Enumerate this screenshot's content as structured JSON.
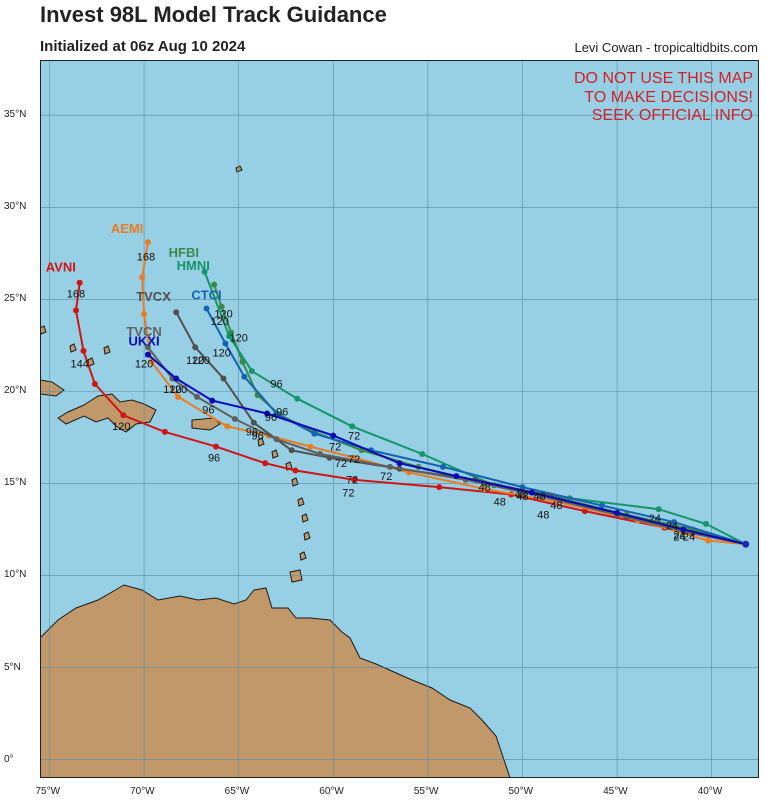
{
  "header": {
    "title": "Invest 98L Model Track Guidance",
    "subtitle": "Initialized at 06z Aug 10 2024",
    "credit": "Levi Cowan - tropicaltidbits.com"
  },
  "warning": [
    "DO NOT USE THIS MAP",
    "TO MAKE DECISIONS!",
    "SEEK OFFICIAL INFO"
  ],
  "colors": {
    "ocean": "#97cfe4",
    "land": "#c0986a",
    "grid": "#5a8ea6",
    "warning": "#d61f26"
  },
  "chart_data": {
    "type": "map",
    "projection": "equirectangular",
    "lon_range": [
      -75.5,
      -37.5
    ],
    "lat_range": [
      -1,
      38
    ],
    "lat_ticks": [
      {
        "value": 35,
        "label": "35°N"
      },
      {
        "value": 30,
        "label": "30°N"
      },
      {
        "value": 25,
        "label": "25°N"
      },
      {
        "value": 20,
        "label": "20°N"
      },
      {
        "value": 15,
        "label": "15°N"
      },
      {
        "value": 10,
        "label": "10°N"
      },
      {
        "value": 5,
        "label": "5°N"
      },
      {
        "value": 0,
        "label": "0°"
      }
    ],
    "lon_ticks": [
      {
        "value": -75,
        "label": "75°W"
      },
      {
        "value": -70,
        "label": "70°W"
      },
      {
        "value": -65,
        "label": "65°W"
      },
      {
        "value": -60,
        "label": "60°W"
      },
      {
        "value": -55,
        "label": "55°W"
      },
      {
        "value": -50,
        "label": "50°W"
      },
      {
        "value": -45,
        "label": "45°W"
      },
      {
        "value": -40,
        "label": "40°W"
      }
    ],
    "grid": true,
    "models": [
      {
        "name": "AVNI",
        "color": "#d01515",
        "track": [
          [
            -38.2,
            11.7
          ],
          [
            -42.5,
            12.6
          ],
          [
            -46.7,
            13.5
          ],
          [
            -50.6,
            14.4
          ],
          [
            -54.4,
            14.8
          ],
          [
            -58.9,
            15.2
          ],
          [
            -62.0,
            15.7
          ],
          [
            -63.6,
            16.1
          ],
          [
            -66.2,
            17.0
          ],
          [
            -68.9,
            17.8
          ],
          [
            -71.1,
            18.7
          ],
          [
            -72.6,
            20.4
          ],
          [
            -73.2,
            22.2
          ],
          [
            -73.6,
            24.4
          ],
          [
            -73.4,
            25.9
          ]
        ],
        "labels": [
          {
            "text": "24",
            "lon": -41.7,
            "lat": 11.9
          },
          {
            "text": "48",
            "lon": -51.2,
            "lat": 13.8
          },
          {
            "text": "72",
            "lon": -59.2,
            "lat": 14.3
          },
          {
            "text": "96",
            "lon": -66.3,
            "lat": 16.2
          },
          {
            "text": "120",
            "lon": -71.2,
            "lat": 17.9
          },
          {
            "text": "144",
            "lon": -73.4,
            "lat": 21.3
          },
          {
            "text": "168",
            "lon": -73.6,
            "lat": 25.1
          }
        ],
        "name_pos": {
          "lon": -74.4,
          "lat": 26.5
        }
      },
      {
        "name": "AEMI",
        "color": "#e87d22",
        "track": [
          [
            -38.2,
            11.7
          ],
          [
            -40.2,
            11.9
          ],
          [
            -43.9,
            13.0
          ],
          [
            -48.2,
            14.0
          ],
          [
            -52.0,
            14.7
          ],
          [
            -56.0,
            15.6
          ],
          [
            -58.9,
            16.4
          ],
          [
            -61.2,
            17.0
          ],
          [
            -63.4,
            17.6
          ],
          [
            -65.6,
            18.1
          ],
          [
            -68.2,
            19.7
          ],
          [
            -69.6,
            21.6
          ],
          [
            -70.0,
            24.2
          ],
          [
            -70.1,
            26.2
          ],
          [
            -69.8,
            28.1
          ]
        ],
        "labels": [
          {
            "text": "168",
            "lon": -69.9,
            "lat": 27.1
          }
        ],
        "name_pos": {
          "lon": -70.9,
          "lat": 28.6
        }
      },
      {
        "name": "HFBI",
        "color": "#3a8a4a",
        "track": [
          [
            -38.2,
            11.7
          ],
          [
            -41.0,
            12.5
          ],
          [
            -44.5,
            13.3
          ],
          [
            -48.0,
            14.2
          ],
          [
            -52.0,
            15.0
          ],
          [
            -55.5,
            15.9
          ],
          [
            -58.5,
            16.8
          ],
          [
            -61.0,
            17.8
          ],
          [
            -62.8,
            18.7
          ],
          [
            -64.0,
            19.8
          ],
          [
            -64.8,
            21.6
          ],
          [
            -65.4,
            23.2
          ],
          [
            -65.9,
            24.6
          ],
          [
            -66.3,
            25.8
          ]
        ],
        "labels": [],
        "name_pos": {
          "lon": -67.9,
          "lat": 27.3
        }
      },
      {
        "name": "HMNI",
        "color": "#14966a",
        "track": [
          [
            -38.2,
            11.7
          ],
          [
            -40.3,
            12.8
          ],
          [
            -42.8,
            13.6
          ],
          [
            -47.5,
            14.2
          ],
          [
            -51.5,
            14.9
          ],
          [
            -55.3,
            16.6
          ],
          [
            -59.0,
            18.1
          ],
          [
            -61.9,
            19.6
          ],
          [
            -64.3,
            21.1
          ],
          [
            -65.5,
            23.0
          ],
          [
            -66.8,
            26.5
          ]
        ],
        "labels": [
          {
            "text": "120",
            "lon": -65.0,
            "lat": 22.7
          }
        ],
        "name_pos": {
          "lon": -67.4,
          "lat": 26.6
        }
      },
      {
        "name": "CTCI",
        "color": "#1464b4",
        "track": [
          [
            -38.2,
            11.7
          ],
          [
            -42.0,
            12.9
          ],
          [
            -45.8,
            13.8
          ],
          [
            -50.0,
            14.8
          ],
          [
            -54.2,
            15.9
          ],
          [
            -58.0,
            16.8
          ],
          [
            -61.0,
            17.7
          ],
          [
            -63.0,
            18.8
          ],
          [
            -64.7,
            20.8
          ],
          [
            -65.7,
            22.6
          ],
          [
            -66.7,
            24.5
          ]
        ],
        "labels": [
          {
            "text": "120",
            "lon": -66.0,
            "lat": 23.6
          },
          {
            "text": "120",
            "lon": -65.9,
            "lat": 21.9
          }
        ],
        "name_pos": {
          "lon": -66.7,
          "lat": 25.0
        }
      },
      {
        "name": "TVCX",
        "color": "#505050",
        "track": [
          [
            -38.2,
            11.7
          ],
          [
            -41.0,
            12.3
          ],
          [
            -44.5,
            13.2
          ],
          [
            -48.5,
            14.3
          ],
          [
            -52.5,
            15.2
          ],
          [
            -56.5,
            15.8
          ],
          [
            -60.2,
            16.4
          ],
          [
            -62.2,
            16.8
          ],
          [
            -64.2,
            18.3
          ],
          [
            -65.8,
            20.7
          ],
          [
            -67.3,
            22.4
          ],
          [
            -68.3,
            24.3
          ]
        ],
        "labels": [
          {
            "text": "120",
            "lon": -67.3,
            "lat": 21.5
          },
          {
            "text": "96",
            "lon": -64.3,
            "lat": 17.6
          }
        ],
        "name_pos": {
          "lon": -69.5,
          "lat": 24.9
        }
      },
      {
        "name": "TVCN",
        "color": "#606060",
        "track": [
          [
            -38.2,
            11.7
          ],
          [
            -41.5,
            12.4
          ],
          [
            -45.0,
            13.3
          ],
          [
            -49.0,
            14.3
          ],
          [
            -53.0,
            15.2
          ],
          [
            -57.0,
            15.9
          ],
          [
            -60.7,
            16.6
          ],
          [
            -63.0,
            17.4
          ],
          [
            -65.2,
            18.5
          ],
          [
            -67.2,
            19.7
          ],
          [
            -68.5,
            20.7
          ],
          [
            -69.8,
            22.4
          ]
        ],
        "labels": [
          {
            "text": "120",
            "lon": -68.5,
            "lat": 19.9
          }
        ],
        "name_pos": {
          "lon": -70.0,
          "lat": 23.0
        }
      },
      {
        "name": "UKXI",
        "color": "#0a0ab4",
        "track": [
          [
            -38.2,
            11.7
          ],
          [
            -41.5,
            12.5
          ],
          [
            -45.0,
            13.4
          ],
          [
            -49.5,
            14.5
          ],
          [
            -53.5,
            15.4
          ],
          [
            -56.5,
            16.1
          ],
          [
            -60.0,
            17.6
          ],
          [
            -63.5,
            18.8
          ],
          [
            -66.4,
            19.5
          ],
          [
            -68.3,
            20.7
          ],
          [
            -69.8,
            22.0
          ]
        ],
        "labels": [
          {
            "text": "120",
            "lon": -70.0,
            "lat": 21.3
          },
          {
            "text": "96",
            "lon": -66.6,
            "lat": 18.8
          }
        ],
        "name_pos": {
          "lon": -70.0,
          "lat": 22.5
        }
      }
    ],
    "hour_labels": [
      {
        "text": "24",
        "lon": -41.2,
        "lat": 11.9
      },
      {
        "text": "24",
        "lon": -42.1,
        "lat": 12.5
      },
      {
        "text": "24",
        "lon": -43.0,
        "lat": 12.9
      },
      {
        "text": "24",
        "lon": -41.7,
        "lat": 12.0
      },
      {
        "text": "48",
        "lon": -50.1,
        "lat": 14.2
      },
      {
        "text": "48",
        "lon": -49.1,
        "lat": 14.1
      },
      {
        "text": "48",
        "lon": -48.2,
        "lat": 13.6
      },
      {
        "text": "48",
        "lon": -48.9,
        "lat": 13.1
      },
      {
        "text": "48",
        "lon": -52.0,
        "lat": 14.6
      },
      {
        "text": "48",
        "lon": -50.0,
        "lat": 14.1
      },
      {
        "text": "72",
        "lon": -59.9,
        "lat": 16.8
      },
      {
        "text": "72",
        "lon": -59.6,
        "lat": 15.9
      },
      {
        "text": "72",
        "lon": -58.9,
        "lat": 16.1
      },
      {
        "text": "72",
        "lon": -57.2,
        "lat": 15.2
      },
      {
        "text": "72",
        "lon": -59.0,
        "lat": 15.0
      },
      {
        "text": "72",
        "lon": -58.9,
        "lat": 17.4
      },
      {
        "text": "96",
        "lon": -62.7,
        "lat": 18.7
      },
      {
        "text": "96",
        "lon": -63.3,
        "lat": 18.4
      },
      {
        "text": "96",
        "lon": -64.0,
        "lat": 17.4
      },
      {
        "text": "96",
        "lon": -63.0,
        "lat": 20.2
      },
      {
        "text": "120",
        "lon": -65.8,
        "lat": 24.0
      },
      {
        "text": "120",
        "lon": -67.0,
        "lat": 21.5
      },
      {
        "text": "120",
        "lon": -68.2,
        "lat": 19.9
      }
    ]
  }
}
